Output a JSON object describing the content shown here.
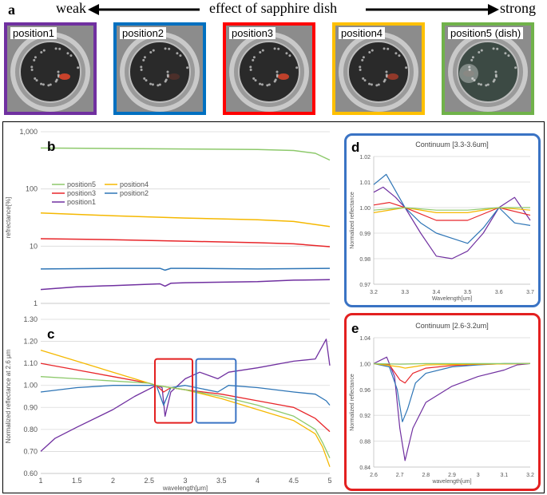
{
  "header": {
    "panel_a": "a",
    "weak": "weak",
    "effect": "effect of sapphire dish",
    "strong": "strong"
  },
  "photos": [
    {
      "label": "position1",
      "frame_color": "#7030a0"
    },
    {
      "label": "position2",
      "frame_color": "#0070c0"
    },
    {
      "label": "position3",
      "frame_color": "#ff0000"
    },
    {
      "label": "position4",
      "frame_color": "#ffc000"
    },
    {
      "label": "position5 (dish)",
      "frame_color": "#70b24a"
    }
  ],
  "colors": {
    "position1": "#7030a0",
    "position2": "#2e75b6",
    "position3": "#e8262a",
    "position4": "#f5b800",
    "position5": "#8dc96b",
    "box_red": "#e32020",
    "box_blue": "#3a73c4"
  },
  "chart_data": [
    {
      "panel": "b",
      "type": "line",
      "yscale": "log",
      "ylabel": "refrectance[%]",
      "ylim": [
        1,
        1000
      ],
      "yticks": [
        "1",
        "10",
        "100",
        "1,000"
      ],
      "xlim": [
        1,
        5
      ],
      "legend": [
        "position5",
        "position4",
        "position3",
        "position2",
        "position1"
      ],
      "series": [
        {
          "name": "position5",
          "x": [
            1,
            2,
            3,
            4,
            4.5,
            4.8,
            5
          ],
          "values": [
            520,
            510,
            500,
            490,
            470,
            420,
            320
          ]
        },
        {
          "name": "position4",
          "x": [
            1,
            2,
            3,
            4,
            4.5,
            5
          ],
          "values": [
            38,
            34,
            31,
            29,
            27,
            22
          ]
        },
        {
          "name": "position3",
          "x": [
            1,
            2,
            3,
            4,
            4.5,
            5
          ],
          "values": [
            13.5,
            13,
            12.2,
            11.5,
            11,
            9.8
          ]
        },
        {
          "name": "position2",
          "x": [
            1,
            2,
            2.65,
            2.72,
            2.8,
            3,
            4,
            5
          ],
          "values": [
            4.0,
            4.1,
            4.1,
            3.8,
            4.1,
            4.1,
            4.0,
            4.1
          ]
        },
        {
          "name": "position1",
          "x": [
            1,
            1.5,
            2,
            2.65,
            2.72,
            2.8,
            3,
            4,
            4.5,
            5
          ],
          "values": [
            1.75,
            1.95,
            2.05,
            2.2,
            2.0,
            2.25,
            2.3,
            2.4,
            2.55,
            2.6
          ]
        }
      ]
    },
    {
      "panel": "c",
      "type": "line",
      "ylabel": "Normalized reflectance at 2.6 μm",
      "xlabel": "wavelength[μm]",
      "xlim": [
        1,
        5
      ],
      "ylim": [
        0.6,
        1.3
      ],
      "xticks": [
        "1",
        "1.5",
        "2",
        "2.5",
        "3",
        "3.5",
        "4",
        "4.5",
        "5"
      ],
      "yticks": [
        "0.60",
        "0.70",
        "0.80",
        "0.90",
        "1.00",
        "1.10",
        "1.20",
        "1.30"
      ],
      "series": [
        {
          "name": "position1",
          "x": [
            1,
            1.2,
            1.5,
            2,
            2.3,
            2.6,
            2.68,
            2.72,
            2.8,
            3,
            3.2,
            3.45,
            3.6,
            4,
            4.5,
            4.8,
            4.95,
            5
          ],
          "values": [
            0.7,
            0.76,
            0.81,
            0.89,
            0.95,
            1.0,
            0.99,
            0.86,
            0.97,
            1.03,
            1.06,
            1.03,
            1.06,
            1.08,
            1.11,
            1.12,
            1.21,
            1.09
          ]
        },
        {
          "name": "position2",
          "x": [
            1,
            1.5,
            2,
            2.5,
            2.6,
            2.7,
            2.8,
            3,
            3.45,
            3.6,
            4,
            4.5,
            4.8,
            4.95,
            5
          ],
          "values": [
            0.97,
            0.99,
            1.0,
            1.0,
            1.0,
            0.91,
            0.99,
            1.0,
            0.97,
            1.0,
            0.99,
            0.97,
            0.96,
            0.93,
            0.91
          ]
        },
        {
          "name": "position3",
          "x": [
            1,
            1.5,
            2,
            2.5,
            2.6,
            2.7,
            2.8,
            3,
            3.5,
            4,
            4.5,
            4.8,
            5
          ],
          "values": [
            1.1,
            1.07,
            1.04,
            1.01,
            1.0,
            0.97,
            0.99,
            0.98,
            0.96,
            0.93,
            0.9,
            0.85,
            0.79
          ]
        },
        {
          "name": "position4",
          "x": [
            1,
            1.5,
            2,
            2.5,
            2.6,
            3,
            3.5,
            4,
            4.5,
            4.8,
            4.9,
            5
          ],
          "values": [
            1.16,
            1.11,
            1.06,
            1.01,
            1.0,
            0.98,
            0.94,
            0.89,
            0.84,
            0.78,
            0.72,
            0.63
          ]
        },
        {
          "name": "position5",
          "x": [
            1,
            1.5,
            2,
            2.5,
            2.6,
            3,
            3.5,
            4,
            4.5,
            4.8,
            4.9,
            5
          ],
          "values": [
            1.04,
            1.03,
            1.02,
            1.01,
            1.0,
            0.98,
            0.95,
            0.91,
            0.86,
            0.8,
            0.74,
            0.67
          ]
        }
      ]
    },
    {
      "panel": "d",
      "type": "line",
      "title": "Continuum [3.3-3.6um]",
      "ylabel": "Normalized reflectance",
      "xlabel": "Wavelength[um]",
      "xlim": [
        3.2,
        3.7
      ],
      "ylim": [
        0.97,
        1.02
      ],
      "xticks": [
        "3.2",
        "3.3",
        "3.4",
        "3.5",
        "3.6",
        "3.7"
      ],
      "yticks": [
        "0.97",
        "0.98",
        "0.99",
        "1.00",
        "1.01",
        "1.02"
      ],
      "series": [
        {
          "name": "position1",
          "x": [
            3.2,
            3.23,
            3.27,
            3.3,
            3.35,
            3.4,
            3.45,
            3.5,
            3.55,
            3.6,
            3.65,
            3.7
          ],
          "values": [
            1.006,
            1.008,
            1.004,
            1.0,
            0.99,
            0.981,
            0.98,
            0.983,
            0.99,
            1.0,
            1.004,
            0.995
          ]
        },
        {
          "name": "position2",
          "x": [
            3.2,
            3.24,
            3.3,
            3.35,
            3.4,
            3.45,
            3.5,
            3.55,
            3.6,
            3.65,
            3.7
          ],
          "values": [
            1.009,
            1.013,
            1.0,
            0.994,
            0.99,
            0.988,
            0.986,
            0.992,
            1.0,
            0.994,
            0.993
          ]
        },
        {
          "name": "position3",
          "x": [
            3.2,
            3.25,
            3.3,
            3.4,
            3.5,
            3.6,
            3.7
          ],
          "values": [
            1.001,
            1.002,
            1.0,
            0.995,
            0.995,
            1.0,
            0.997
          ]
        },
        {
          "name": "position4",
          "x": [
            3.2,
            3.3,
            3.4,
            3.5,
            3.6,
            3.7
          ],
          "values": [
            0.998,
            1.0,
            0.998,
            0.998,
            1.0,
            0.999
          ]
        },
        {
          "name": "position5",
          "x": [
            3.2,
            3.3,
            3.4,
            3.5,
            3.6,
            3.7
          ],
          "values": [
            0.999,
            1.0,
            0.999,
            0.999,
            1.0,
            1.0
          ]
        }
      ]
    },
    {
      "panel": "e",
      "type": "line",
      "title": "Continuum [2.6-3.2um]",
      "ylabel": "Normalized reflectance",
      "xlabel": "wavelength[um]",
      "xlim": [
        2.6,
        3.2
      ],
      "ylim": [
        0.84,
        1.04
      ],
      "xticks": [
        "2.6",
        "2.7",
        "2.8",
        "2.9",
        "3",
        "3.1",
        "3.2"
      ],
      "yticks": [
        "0.84",
        "0.88",
        "0.92",
        "0.96",
        "1.00",
        "1.04"
      ],
      "series": [
        {
          "name": "position1",
          "x": [
            2.6,
            2.65,
            2.68,
            2.7,
            2.72,
            2.75,
            2.8,
            2.9,
            3.0,
            3.1,
            3.15,
            3.2
          ],
          "values": [
            1.0,
            1.01,
            0.98,
            0.9,
            0.85,
            0.9,
            0.94,
            0.965,
            0.98,
            0.99,
            0.998,
            1.0
          ]
        },
        {
          "name": "position2",
          "x": [
            2.6,
            2.66,
            2.69,
            2.71,
            2.73,
            2.76,
            2.8,
            2.9,
            3.0,
            3.1,
            3.2
          ],
          "values": [
            1.0,
            0.995,
            0.96,
            0.91,
            0.93,
            0.97,
            0.985,
            0.995,
            0.998,
            1.0,
            1.0
          ]
        },
        {
          "name": "position3",
          "x": [
            2.6,
            2.66,
            2.7,
            2.72,
            2.75,
            2.8,
            2.9,
            3.0,
            3.2
          ],
          "values": [
            1.0,
            0.998,
            0.975,
            0.97,
            0.985,
            0.993,
            0.997,
            0.999,
            1.0
          ]
        },
        {
          "name": "position4",
          "x": [
            2.6,
            2.7,
            2.72,
            2.8,
            3.0,
            3.2
          ],
          "values": [
            1.0,
            0.995,
            0.993,
            0.998,
            0.999,
            1.0
          ]
        },
        {
          "name": "position5",
          "x": [
            2.6,
            2.7,
            2.8,
            3.0,
            3.2
          ],
          "values": [
            1.0,
            0.999,
            1.0,
            1.0,
            1.0
          ]
        }
      ]
    }
  ],
  "panel_labels": {
    "b": "b",
    "c": "c",
    "d": "d",
    "e": "e"
  }
}
